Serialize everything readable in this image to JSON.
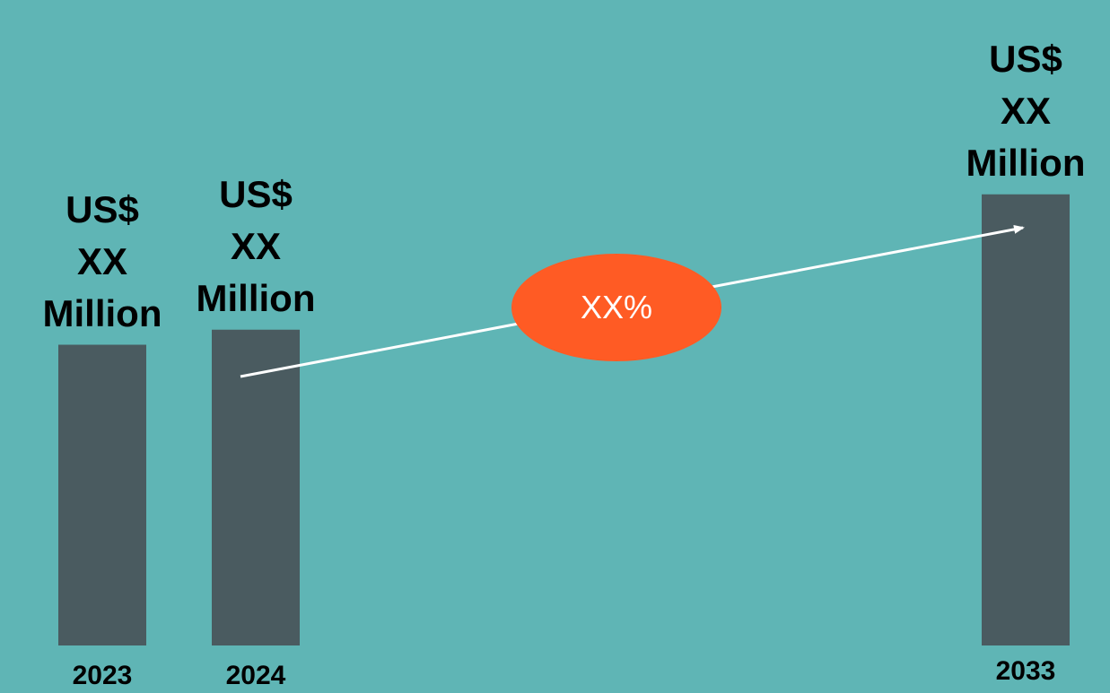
{
  "colors": {
    "background": "#5fb5b5",
    "bar": "#4a5b60",
    "arrow": "#ffffff",
    "bubble": "#ff5b24"
  },
  "chart_data": {
    "type": "bar",
    "categories": [
      "2023",
      "2024",
      "2033"
    ],
    "values": [
      1.0,
      1.05,
      1.5
    ],
    "value_labels": [
      [
        "US$",
        "XX",
        "Million"
      ],
      [
        "US$",
        "XX",
        "Million"
      ],
      [
        "US$",
        "XX",
        "Million"
      ]
    ],
    "cagr_label": "XX%",
    "ylim": [
      0,
      1.55
    ],
    "grid": false,
    "legend": "none"
  }
}
